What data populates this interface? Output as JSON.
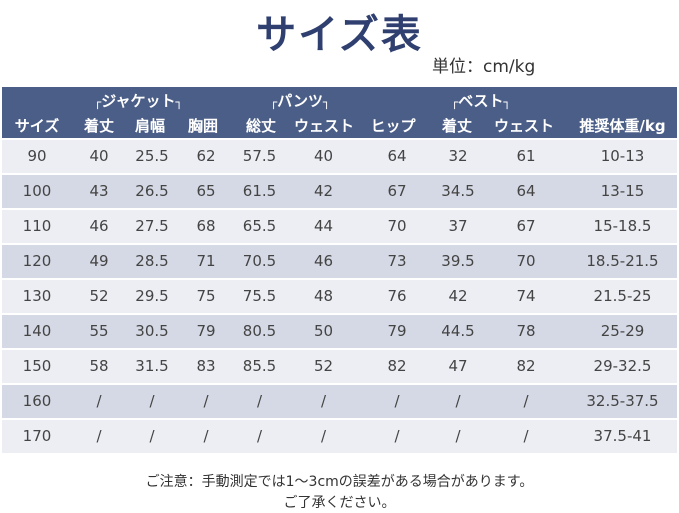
{
  "title": "サイズ表",
  "unit_label": "単位：cm/kg",
  "groups": [
    {
      "label": "ジャケット",
      "open": "┌",
      "close": "┐"
    },
    {
      "label": "パンツ",
      "open": "┌",
      "close": "┐"
    },
    {
      "label": "ベスト",
      "open": "┌",
      "close": "┐"
    }
  ],
  "columns": [
    "サイズ",
    "着丈",
    "肩幅",
    "胸囲",
    "総丈",
    "ウェスト",
    "ヒップ",
    "着丈",
    "ウェスト",
    "推奨体重/kg"
  ],
  "rows": [
    [
      "90",
      "40",
      "25.5",
      "62",
      "57.5",
      "40",
      "64",
      "32",
      "61",
      "10-13"
    ],
    [
      "100",
      "43",
      "26.5",
      "65",
      "61.5",
      "42",
      "67",
      "34.5",
      "64",
      "13-15"
    ],
    [
      "110",
      "46",
      "27.5",
      "68",
      "65.5",
      "44",
      "70",
      "37",
      "67",
      "15-18.5"
    ],
    [
      "120",
      "49",
      "28.5",
      "71",
      "70.5",
      "46",
      "73",
      "39.5",
      "70",
      "18.5-21.5"
    ],
    [
      "130",
      "52",
      "29.5",
      "75",
      "75.5",
      "48",
      "76",
      "42",
      "74",
      "21.5-25"
    ],
    [
      "140",
      "55",
      "30.5",
      "79",
      "80.5",
      "50",
      "79",
      "44.5",
      "78",
      "25-29"
    ],
    [
      "150",
      "58",
      "31.5",
      "83",
      "85.5",
      "52",
      "82",
      "47",
      "82",
      "29-32.5"
    ],
    [
      "160",
      "/",
      "/",
      "/",
      "/",
      "/",
      "/",
      "/",
      "/",
      "32.5-37.5"
    ],
    [
      "170",
      "/",
      "/",
      "/",
      "/",
      "/",
      "/",
      "/",
      "/",
      "37.5-41"
    ]
  ],
  "notes": [
    "ご注意：手動測定では1～3cmの誤差がある場合があります。",
    "ご了承ください。"
  ],
  "colors": {
    "header": "#4b5e87",
    "title": "#2f3f6f",
    "row_light": "#eceef4",
    "row_dark": "#d5d9e5"
  }
}
